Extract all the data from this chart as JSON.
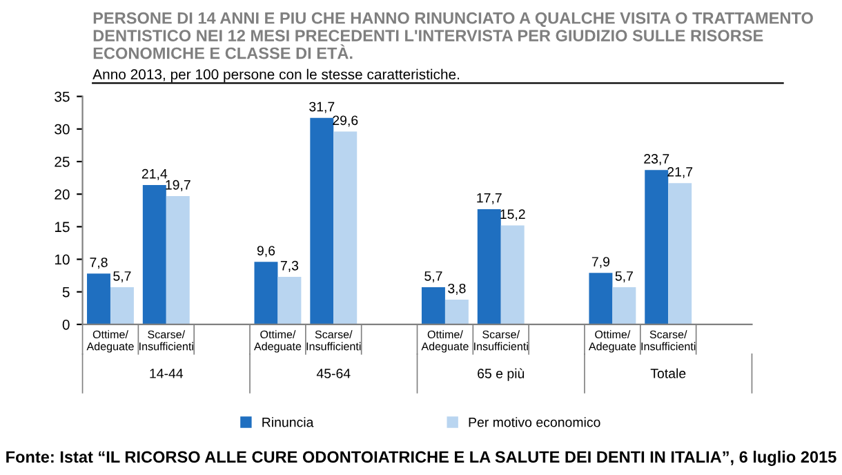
{
  "chart_data": {
    "type": "bar",
    "title": "PERSONE DI 14 ANNI E PIU CHE HANNO RINUNCIATO A QUALCHE VISITA O TRATTAMENTO DENTISTICO NEI 12 MESI PRECEDENTI L'INTERVISTA PER GIUDIZIO SULLE RISORSE ECONOMICHE E CLASSE DI ETÀ.",
    "subtitle": "Anno 2013, per 100 persone con le stesse caratteristiche.",
    "categories": [
      "Ottime/\nAdeguate",
      "Scarse/\nInsufficienti",
      "Ottime/\nAdeguate",
      "Scarse/\nInsufficienti",
      "Ottime/\nAdeguate",
      "Scarse/\nInsufficienti",
      "Ottime/\nAdeguate",
      "Scarse/\nInsufficienti"
    ],
    "series": [
      {
        "name": "Rinuncia",
        "color": "#1f6fc0",
        "values": [
          7.8,
          21.4,
          9.6,
          31.7,
          5.7,
          17.7,
          7.9,
          23.7
        ],
        "value_labels": [
          "7,8",
          "21,4",
          "9,6",
          "31,7",
          "5,7",
          "17,7",
          "7,9",
          "23,7"
        ]
      },
      {
        "name": "Per motivo economico",
        "color": "#b9d5f0",
        "values": [
          5.7,
          19.7,
          7.3,
          29.6,
          3.8,
          15.2,
          5.7,
          21.7
        ],
        "value_labels": [
          "5,7",
          "19,7",
          "7,3",
          "29,6",
          "3,8",
          "15,2",
          "5,7",
          "21,7"
        ]
      }
    ],
    "ylim": [
      0,
      35
    ],
    "yticks": [
      0,
      5,
      10,
      15,
      20,
      25,
      30,
      35
    ],
    "grid": false,
    "legend": "bottom",
    "annotations": [
      "14-44",
      "45-64",
      "65 e più",
      "Totale",
      "Fonte: Istat “IL RICORSO ALLE CURE ODONTOIATRICHE E LA SALUTE DEI DENTI IN ITALIA”, 6 luglio 2015"
    ]
  }
}
